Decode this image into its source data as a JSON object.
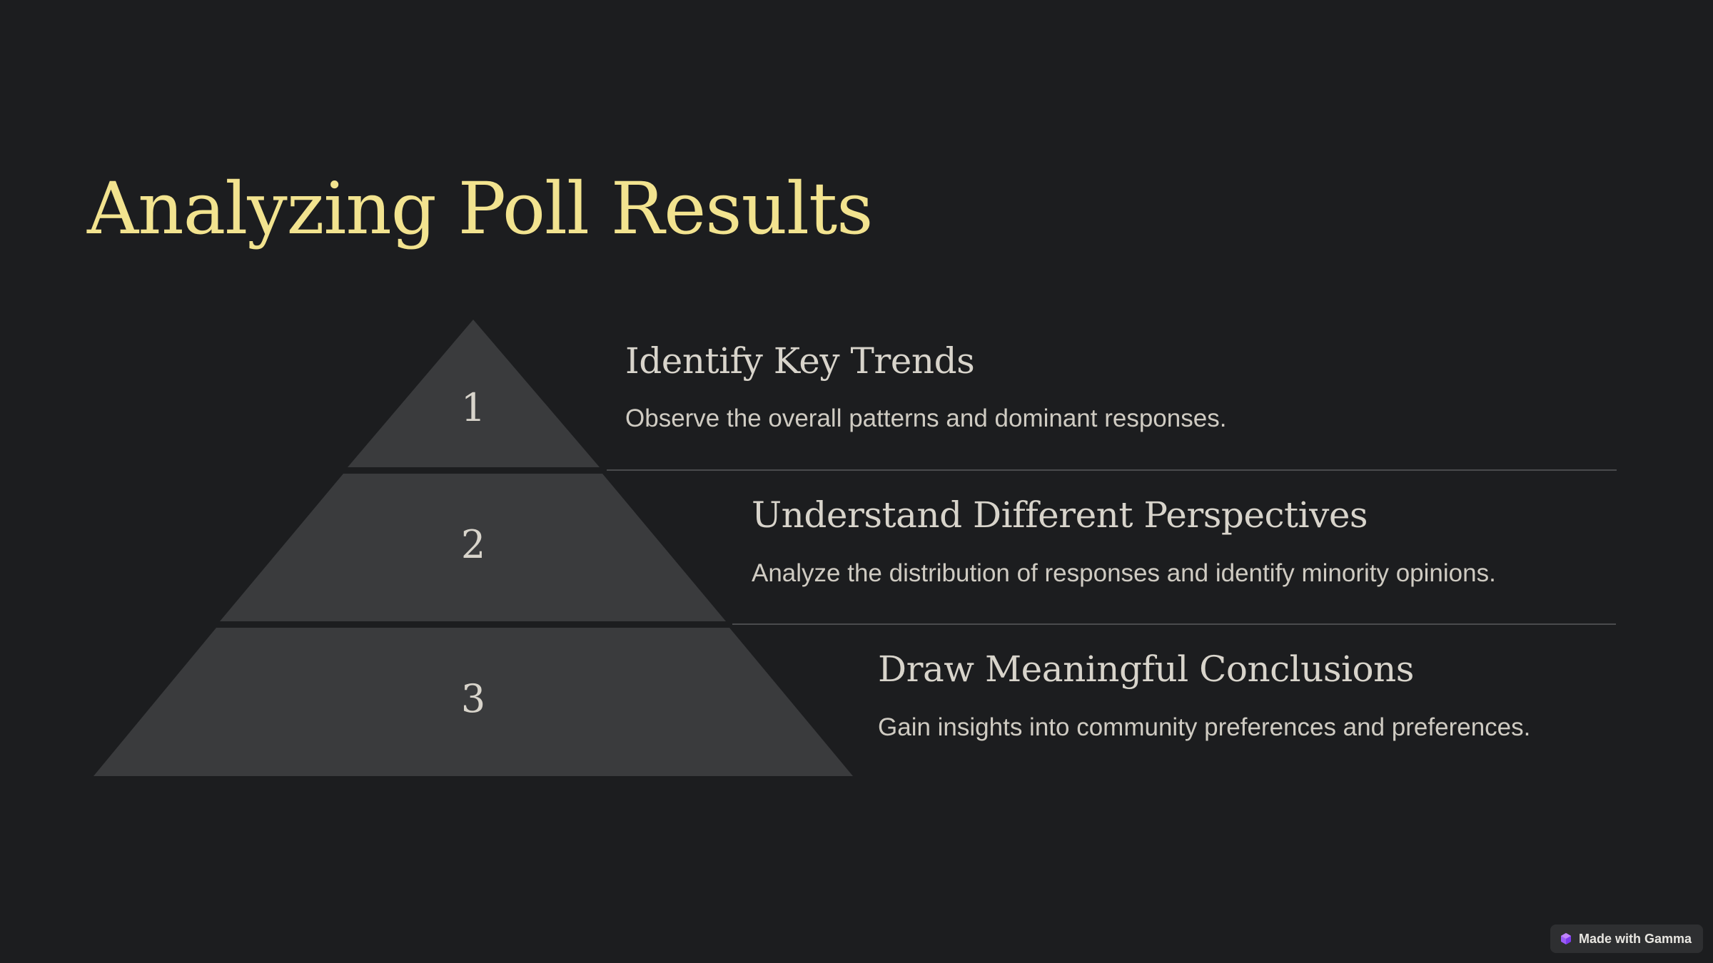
{
  "slide": {
    "title": "Analyzing Poll Results"
  },
  "pyramid": {
    "tiers": [
      {
        "number": "1"
      },
      {
        "number": "2"
      },
      {
        "number": "3"
      }
    ]
  },
  "items": [
    {
      "title": "Identify Key Trends",
      "description": "Observe the overall patterns and dominant responses."
    },
    {
      "title": "Understand Different Perspectives",
      "description": "Analyze the distribution of responses and identify minority opinions."
    },
    {
      "title": "Draw Meaningful Conclusions",
      "description": "Gain insights into community preferences and preferences."
    }
  ],
  "badge": {
    "label": "Made with Gamma",
    "icon": "gamma-logo-icon"
  },
  "colors": {
    "background": "#1c1d1f",
    "title": "#f2e38f",
    "tier_fill": "#3a3b3d",
    "text": "#d8d4cb"
  }
}
